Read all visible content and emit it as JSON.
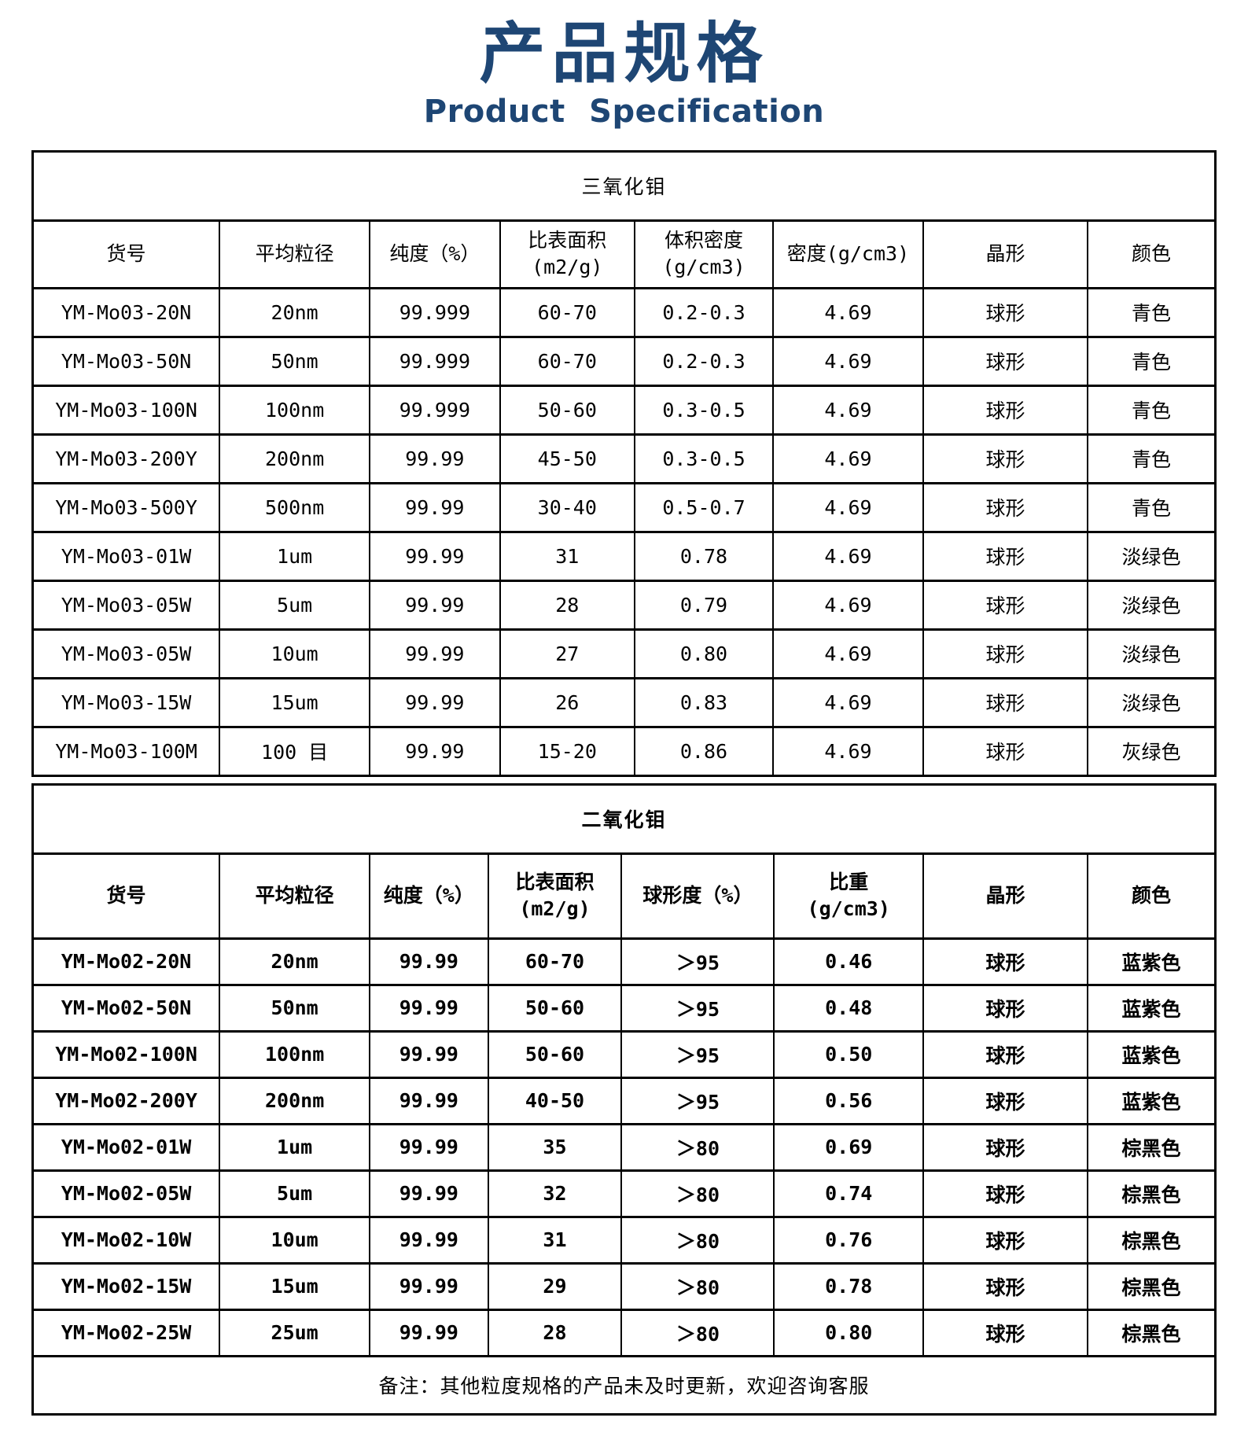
{
  "title": {
    "cn": "产品规格",
    "en": "Product Specification"
  },
  "colors": {
    "accent": "#1E4674",
    "border": "#000000"
  },
  "table1": {
    "title": "三氧化钼",
    "headers": [
      "货号",
      "平均粒径",
      "纯度（%）",
      "比表面积\n(m2/g)",
      "体积密度\n(g/cm3)",
      "密度(g/cm3)",
      "晶形",
      "颜色"
    ],
    "rows": [
      [
        "YM-Mo03-20N",
        "20nm",
        "99.999",
        "60-70",
        "0.2-0.3",
        "4.69",
        "球形",
        "青色"
      ],
      [
        "YM-Mo03-50N",
        "50nm",
        "99.999",
        "60-70",
        "0.2-0.3",
        "4.69",
        "球形",
        "青色"
      ],
      [
        "YM-Mo03-100N",
        "100nm",
        "99.999",
        "50-60",
        "0.3-0.5",
        "4.69",
        "球形",
        "青色"
      ],
      [
        "YM-Mo03-200Y",
        "200nm",
        "99.99",
        "45-50",
        "0.3-0.5",
        "4.69",
        "球形",
        "青色"
      ],
      [
        "YM-Mo03-500Y",
        "500nm",
        "99.99",
        "30-40",
        "0.5-0.7",
        "4.69",
        "球形",
        "青色"
      ],
      [
        "YM-Mo03-01W",
        "1um",
        "99.99",
        "31",
        "0.78",
        "4.69",
        "球形",
        "淡绿色"
      ],
      [
        "YM-Mo03-05W",
        "5um",
        "99.99",
        "28",
        "0.79",
        "4.69",
        "球形",
        "淡绿色"
      ],
      [
        "YM-Mo03-05W",
        "10um",
        "99.99",
        "27",
        "0.80",
        "4.69",
        "球形",
        "淡绿色"
      ],
      [
        "YM-Mo03-15W",
        "15um",
        "99.99",
        "26",
        "0.83",
        "4.69",
        "球形",
        "淡绿色"
      ],
      [
        "YM-Mo03-100M",
        "100 目",
        "99.99",
        "15-20",
        "0.86",
        "4.69",
        "球形",
        "灰绿色"
      ]
    ]
  },
  "table2": {
    "title": "二氧化钼",
    "headers": [
      "货号",
      "平均粒径",
      "纯度（%）",
      "比表面积\n(m2/g)",
      "球形度（%）",
      "比重\n(g/cm3)",
      "晶形",
      "颜色"
    ],
    "rows": [
      [
        "YM-Mo02-20N",
        "20nm",
        "99.99",
        "60-70",
        "＞95",
        "0.46",
        "球形",
        "蓝紫色"
      ],
      [
        "YM-Mo02-50N",
        "50nm",
        "99.99",
        "50-60",
        "＞95",
        "0.48",
        "球形",
        "蓝紫色"
      ],
      [
        "YM-Mo02-100N",
        "100nm",
        "99.99",
        "50-60",
        "＞95",
        "0.50",
        "球形",
        "蓝紫色"
      ],
      [
        "YM-Mo02-200Y",
        "200nm",
        "99.99",
        "40-50",
        "＞95",
        "0.56",
        "球形",
        "蓝紫色"
      ],
      [
        "YM-Mo02-01W",
        "1um",
        "99.99",
        "35",
        "＞80",
        "0.69",
        "球形",
        "棕黑色"
      ],
      [
        "YM-Mo02-05W",
        "5um",
        "99.99",
        "32",
        "＞80",
        "0.74",
        "球形",
        "棕黑色"
      ],
      [
        "YM-Mo02-10W",
        "10um",
        "99.99",
        "31",
        "＞80",
        "0.76",
        "球形",
        "棕黑色"
      ],
      [
        "YM-Mo02-15W",
        "15um",
        "99.99",
        "29",
        "＞80",
        "0.78",
        "球形",
        "棕黑色"
      ],
      [
        "YM-Mo02-25W",
        "25um",
        "99.99",
        "28",
        "＞80",
        "0.80",
        "球形",
        "棕黑色"
      ]
    ]
  },
  "footer": {
    "note": "备注：其他粒度规格的产品未及时更新，欢迎咨询客服"
  }
}
